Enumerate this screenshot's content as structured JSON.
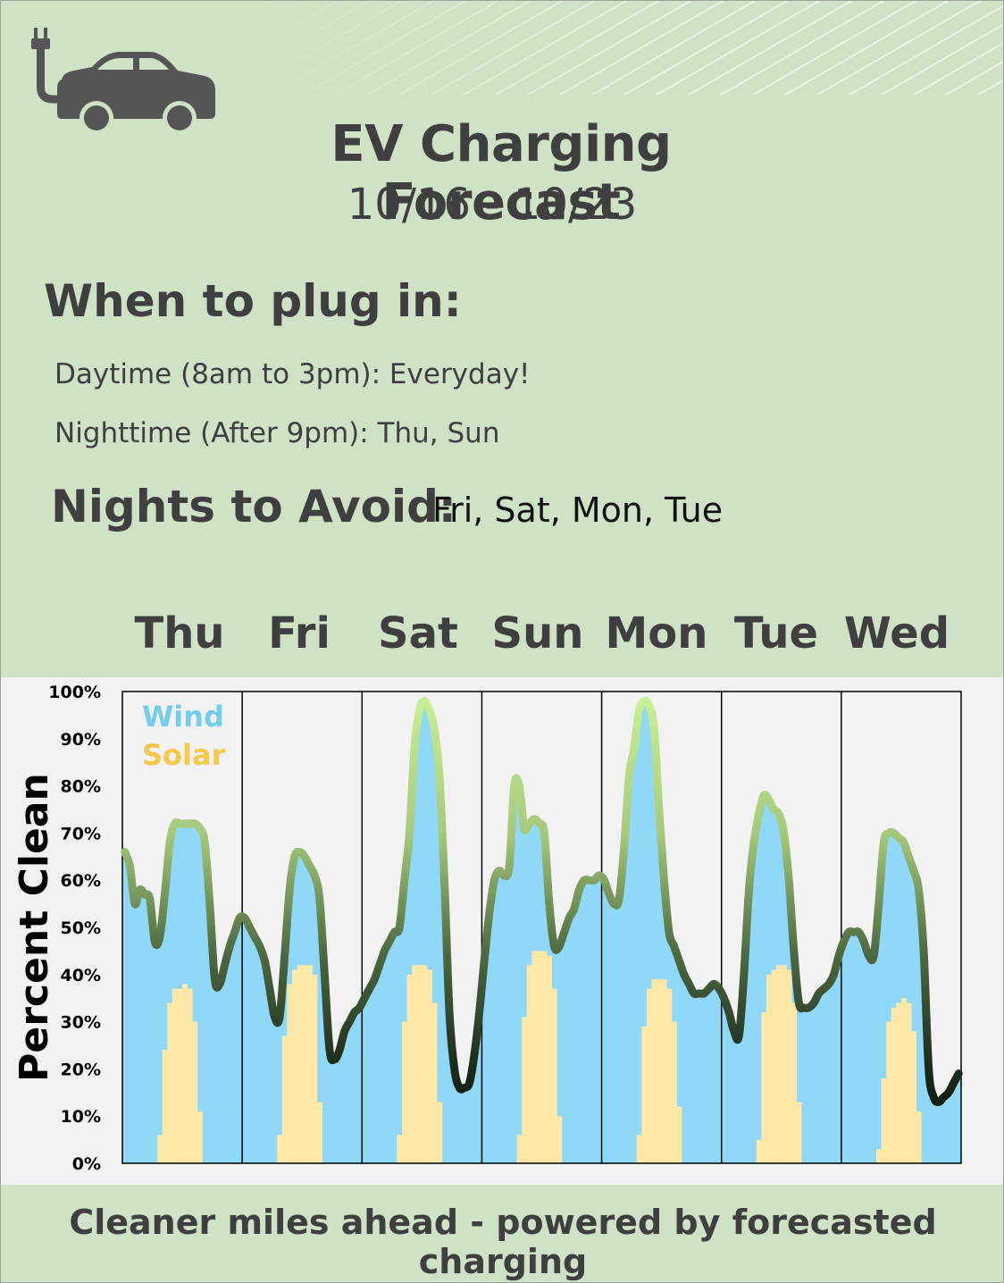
{
  "header": {
    "title": "EV Charging Forecast",
    "date_range": "10/16 - 10/23",
    "icon": "ev-car-plug-icon"
  },
  "plug_in": {
    "heading": "When to plug in:",
    "daytime": "Daytime (8am to 3pm): Everyday!",
    "nighttime": "Nighttime (After 9pm): Thu, Sun"
  },
  "avoid": {
    "heading": "Nights to Avoid:",
    "days": "Fri, Sat, Mon, Tue"
  },
  "days": [
    "Thu",
    "Fri",
    "Sat",
    "Sun",
    "Mon",
    "Tue",
    "Wed"
  ],
  "footer": "Cleaner miles ahead - powered by forecasted charging",
  "colors": {
    "background": "#cfe2c5",
    "wind": "#8fd8f7",
    "solar": "#fde8a8",
    "wind_text": "#73cdf0",
    "solar_text": "#f7c94a",
    "line_high": "#c9f295",
    "line_low": "#101a10"
  },
  "chart_data": {
    "type": "area",
    "ylabel": "Percent Clean",
    "ylim": [
      0,
      100
    ],
    "yticks": [
      "0%",
      "10%",
      "20%",
      "30%",
      "40%",
      "50%",
      "60%",
      "70%",
      "80%",
      "90%",
      "100%"
    ],
    "grid": false,
    "legend": [
      "Wind",
      "Solar"
    ],
    "legend_position": "top-left",
    "x_unit": "hour since Thu 00:00",
    "series": [
      {
        "name": "Wind",
        "x": [
          0,
          1,
          2,
          3,
          4,
          5,
          6,
          7,
          8,
          9,
          10,
          11,
          12,
          13,
          14,
          15,
          16,
          17,
          18,
          19,
          20,
          21,
          22,
          23,
          24,
          25,
          26,
          27,
          28,
          29,
          30,
          31,
          32,
          33,
          34,
          35,
          36,
          37,
          38,
          39,
          40,
          41,
          42,
          43,
          44,
          45,
          46,
          47,
          48,
          49,
          50,
          51,
          52,
          53,
          54,
          55,
          56,
          57,
          58,
          59,
          60,
          61,
          62,
          63,
          64,
          65,
          66,
          67,
          68,
          69,
          70,
          71,
          72,
          73,
          74,
          75,
          76,
          77,
          78,
          79,
          80,
          81,
          82,
          83,
          84,
          85,
          86,
          87,
          88,
          89,
          90,
          91,
          92,
          93,
          94,
          95,
          96,
          97,
          98,
          99,
          100,
          101,
          102,
          103,
          104,
          105,
          106,
          107,
          108,
          109,
          110,
          111,
          112,
          113,
          114,
          115,
          116,
          117,
          118,
          119,
          120,
          121,
          122,
          123,
          124,
          125,
          126,
          127,
          128,
          129,
          130,
          131,
          132,
          133,
          134,
          135,
          136,
          137,
          138,
          139,
          140,
          141,
          142,
          143,
          144,
          145,
          146,
          147,
          148,
          149,
          150,
          151,
          152,
          153,
          154,
          155,
          156,
          157,
          158,
          159,
          160,
          161,
          162,
          163,
          164,
          165,
          166,
          167
        ],
        "values": [
          66,
          63,
          55,
          58,
          57,
          56,
          47,
          48,
          57,
          68,
          72,
          72,
          72,
          72,
          72,
          71,
          68,
          55,
          39,
          38,
          42,
          46,
          49,
          52,
          52,
          50,
          48,
          46,
          43,
          37,
          31,
          31,
          44,
          58,
          65,
          66,
          65,
          63,
          61,
          56,
          40,
          24,
          22,
          24,
          28,
          30,
          32,
          33,
          35,
          37,
          39,
          42,
          45,
          47,
          49,
          50,
          60,
          70,
          88,
          96,
          98,
          96,
          92,
          82,
          60,
          32,
          20,
          16,
          16,
          17,
          23,
          32,
          43,
          53,
          60,
          62,
          61,
          63,
          80,
          80,
          71,
          72,
          73,
          72,
          70,
          55,
          46,
          46,
          49,
          52,
          54,
          58,
          60,
          60,
          60,
          61,
          60,
          57,
          55,
          56,
          67,
          82,
          88,
          96,
          98,
          97,
          92,
          75,
          60,
          49,
          46,
          43,
          40,
          38,
          36,
          36,
          36,
          37,
          38,
          37,
          35,
          32,
          28,
          27,
          40,
          58,
          68,
          74,
          78,
          77,
          75,
          74,
          70,
          60,
          45,
          34,
          33,
          33,
          34,
          36,
          37,
          38,
          40,
          44,
          47,
          49,
          49,
          49,
          47,
          44,
          44,
          55,
          68,
          70,
          70,
          69,
          68,
          65,
          62,
          58,
          45,
          20,
          14,
          13,
          14,
          15,
          17,
          19
        ]
      },
      {
        "name": "Solar",
        "x": [
          0,
          1,
          2,
          3,
          4,
          5,
          6,
          7,
          8,
          9,
          10,
          11,
          12,
          13,
          14,
          15,
          16,
          17,
          18,
          19,
          20,
          21,
          22,
          23,
          24,
          25,
          26,
          27,
          28,
          29,
          30,
          31,
          32,
          33,
          34,
          35,
          36,
          37,
          38,
          39,
          40,
          41,
          42,
          43,
          44,
          45,
          46,
          47,
          48,
          49,
          50,
          51,
          52,
          53,
          54,
          55,
          56,
          57,
          58,
          59,
          60,
          61,
          62,
          63,
          64,
          65,
          66,
          67,
          68,
          69,
          70,
          71,
          72,
          73,
          74,
          75,
          76,
          77,
          78,
          79,
          80,
          81,
          82,
          83,
          84,
          85,
          86,
          87,
          88,
          89,
          90,
          91,
          92,
          93,
          94,
          95,
          96,
          97,
          98,
          99,
          100,
          101,
          102,
          103,
          104,
          105,
          106,
          107,
          108,
          109,
          110,
          111,
          112,
          113,
          114,
          115,
          116,
          117,
          118,
          119,
          120,
          121,
          122,
          123,
          124,
          125,
          126,
          127,
          128,
          129,
          130,
          131,
          132,
          133,
          134,
          135,
          136,
          137,
          138,
          139,
          140,
          141,
          142,
          143,
          144,
          145,
          146,
          147,
          148,
          149,
          150,
          151,
          152,
          153,
          154,
          155,
          156,
          157,
          158,
          159,
          160,
          161,
          162,
          163,
          164,
          165,
          166,
          167
        ],
        "values": [
          0,
          0,
          0,
          0,
          0,
          0,
          0,
          6,
          24,
          34,
          37,
          37,
          38,
          37,
          30,
          11,
          0,
          0,
          0,
          0,
          0,
          0,
          0,
          0,
          0,
          0,
          0,
          0,
          0,
          0,
          0,
          6,
          27,
          38,
          41,
          42,
          42,
          42,
          40,
          13,
          0,
          0,
          0,
          0,
          0,
          0,
          0,
          0,
          0,
          0,
          0,
          0,
          0,
          0,
          0,
          6,
          30,
          40,
          42,
          42,
          42,
          41,
          34,
          13,
          0,
          0,
          0,
          0,
          0,
          0,
          0,
          0,
          0,
          0,
          0,
          0,
          0,
          0,
          0,
          6,
          31,
          42,
          45,
          45,
          45,
          44,
          37,
          10,
          0,
          0,
          0,
          0,
          0,
          0,
          0,
          0,
          0,
          0,
          0,
          0,
          0,
          0,
          0,
          6,
          29,
          37,
          39,
          39,
          39,
          37,
          30,
          12,
          0,
          0,
          0,
          0,
          0,
          0,
          0,
          0,
          0,
          0,
          0,
          0,
          0,
          0,
          0,
          5,
          32,
          40,
          41,
          42,
          42,
          41,
          34,
          13,
          0,
          0,
          0,
          0,
          0,
          0,
          0,
          0,
          0,
          0,
          0,
          0,
          0,
          0,
          0,
          3,
          18,
          30,
          33,
          34,
          35,
          34,
          28,
          11,
          0,
          0,
          0,
          0,
          0,
          0,
          0,
          0
        ]
      }
    ]
  }
}
